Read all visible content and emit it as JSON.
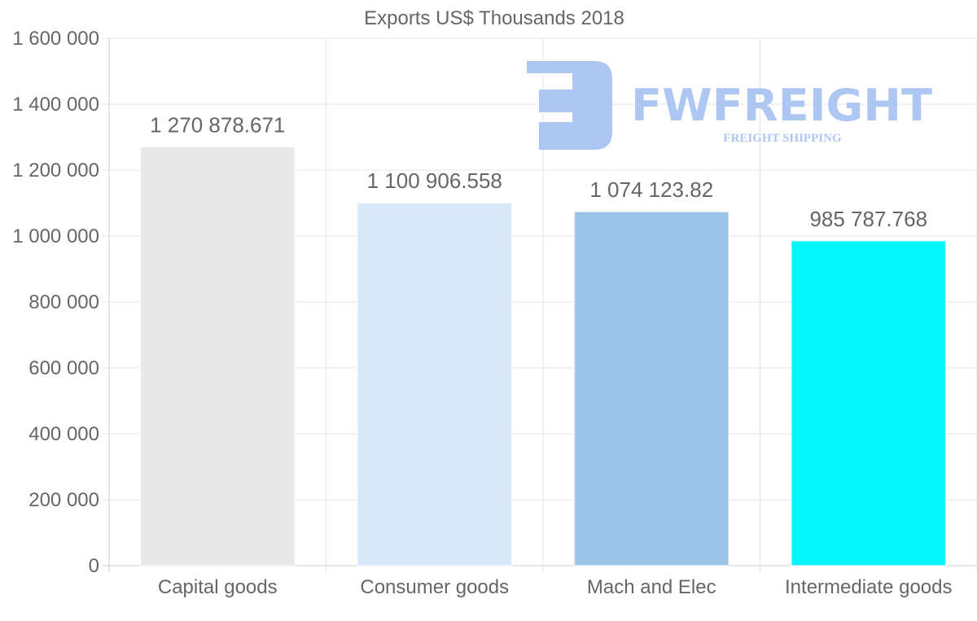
{
  "chart_data": {
    "type": "bar",
    "title": "Exports US$ Thousands 2018",
    "categories": [
      "Capital goods",
      "Consumer goods",
      "Mach and Elec",
      "Intermediate goods"
    ],
    "values": [
      1270878.671,
      1100906.558,
      1074123.82,
      985787.768
    ],
    "data_labels": [
      "1 270 878.671",
      "1 100 906.558",
      "1 074 123.82",
      "985 787.768"
    ],
    "colors": [
      "#e8e8e8",
      "#d8e8f9",
      "#9cc4e6",
      "#00f6f8"
    ],
    "ylim": [
      0,
      1600000
    ],
    "yticks": [
      0,
      200000,
      400000,
      600000,
      800000,
      1000000,
      1200000,
      1400000,
      1600000
    ],
    "ytick_labels": [
      "0",
      "200 000",
      "400 000",
      "600 000",
      "800 000",
      "1 000 000",
      "1 200 000",
      "1 400 000",
      "1 600 000"
    ],
    "xlabel": "",
    "ylabel": "",
    "grid": true,
    "legend": "none"
  },
  "watermark": {
    "brand": "FWFREIGHT",
    "tagline": "FREIGHT SHIPPING",
    "color": "#a9c4f2"
  }
}
